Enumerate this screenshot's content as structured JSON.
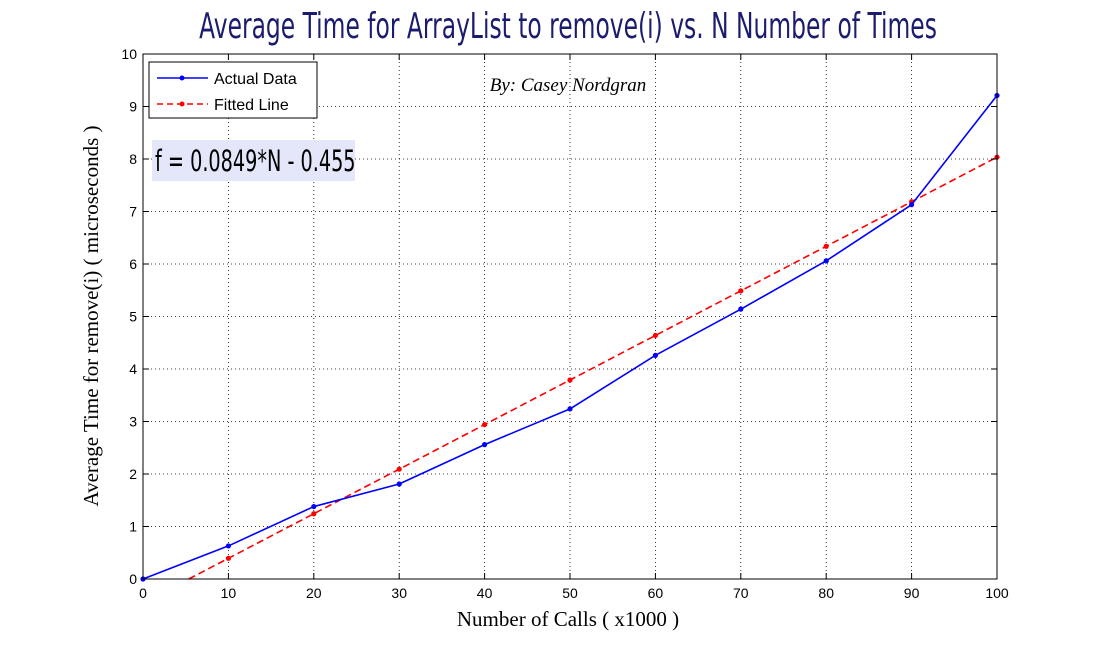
{
  "chart_data": {
    "type": "line",
    "title": "Average Time for ArrayList to  remove(i)  vs.  N Number of Times",
    "subtitle": "By: Casey Nordgran",
    "xlabel": "Number of Calls ( x1000 )",
    "ylabel": "Average Time for  remove(i) ( microseconds )",
    "xlim": [
      0,
      100
    ],
    "ylim": [
      0,
      10
    ],
    "x_ticks": [
      0,
      10,
      20,
      30,
      40,
      50,
      60,
      70,
      80,
      90,
      100
    ],
    "y_ticks": [
      0,
      1,
      2,
      3,
      4,
      5,
      6,
      7,
      8,
      9,
      10
    ],
    "grid": true,
    "legend_position": "top-left",
    "annotation": "f = 0.0849*N - 0.455",
    "series": [
      {
        "name": "Actual Data",
        "color": "#0000ff",
        "style": "solid",
        "marker": "point",
        "x": [
          0,
          10,
          20,
          30,
          40,
          50,
          60,
          70,
          80,
          90,
          100
        ],
        "y": [
          0,
          0.63,
          1.38,
          1.81,
          2.56,
          3.24,
          4.26,
          5.14,
          6.06,
          7.13,
          9.21
        ]
      },
      {
        "name": "Fitted Line",
        "color": "#ff0000",
        "style": "dashed",
        "marker": "point",
        "x": [
          5.36,
          10,
          20,
          30,
          40,
          50,
          60,
          70,
          80,
          90,
          100
        ],
        "y": [
          0,
          0.394,
          1.243,
          2.092,
          2.941,
          3.79,
          4.639,
          5.488,
          6.337,
          7.186,
          8.035
        ]
      }
    ]
  }
}
